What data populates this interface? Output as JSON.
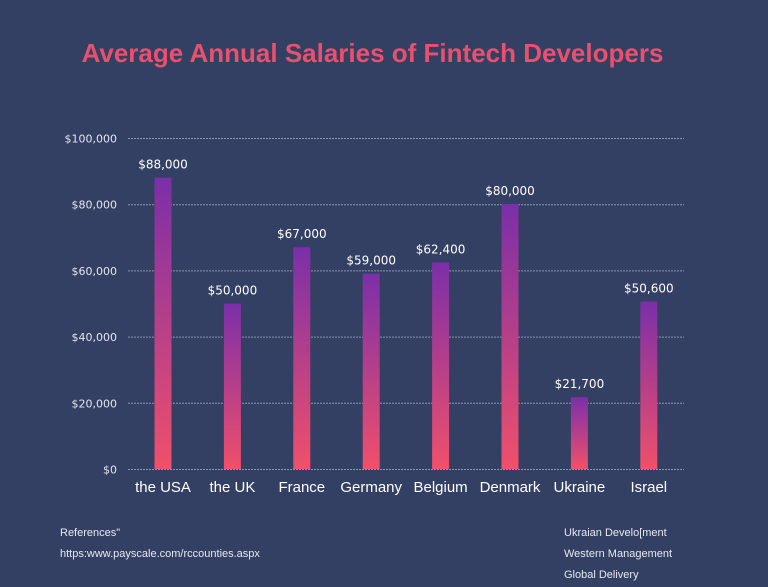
{
  "chart_data": {
    "type": "bar",
    "title": "Average Annual Salaries of Fintech Developers",
    "xlabel": "",
    "ylabel": "",
    "categories": [
      "the USA",
      "the UK",
      "France",
      "Germany",
      "Belgium",
      "Denmark",
      "Ukraine",
      "Israel"
    ],
    "values": [
      88000,
      50000,
      67000,
      59000,
      62400,
      80000,
      21700,
      50600
    ],
    "data_labels": [
      "$88,000",
      "$50,000",
      "$67,000",
      "$59,000",
      "$62,400",
      "$80,000",
      "$21,700",
      "$50,600"
    ],
    "ylim": [
      0,
      100000
    ],
    "yticks": [
      0,
      20000,
      40000,
      60000,
      80000,
      100000
    ],
    "ytick_labels": [
      "$0",
      "$20,000",
      "$40,000",
      "$60,000",
      "$80,000",
      "$100,000"
    ],
    "grid": true,
    "legend": "none",
    "bar_gradient": {
      "top": "#7b2fa8",
      "bottom": "#f0506a"
    }
  },
  "colors": {
    "background": "#333f63",
    "title": "#e8506e"
  },
  "footer": {
    "left": [
      "References\"",
      "https:www.payscale.com/rccounties.aspx"
    ],
    "right": [
      "Ukraian Develo[ment",
      "Western Management",
      "Global Delivery"
    ]
  }
}
